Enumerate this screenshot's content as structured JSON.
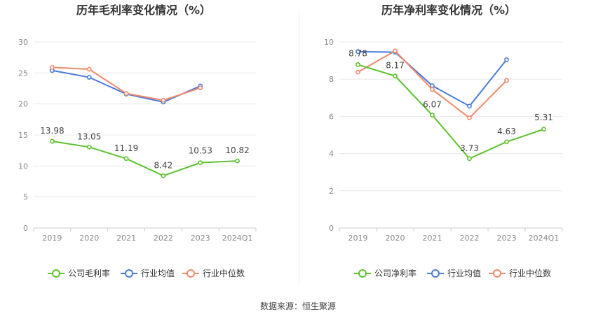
{
  "source": "数据来源：恒生聚源",
  "colors": {
    "company": "#5cc22c",
    "avg": "#4a7bd8",
    "median": "#f2896a"
  },
  "chart_data": [
    {
      "type": "line",
      "title": "历年毛利率变化情况（%）",
      "categories": [
        "2019",
        "2020",
        "2021",
        "2022",
        "2023",
        "2024Q1"
      ],
      "ylim": [
        0,
        30
      ],
      "yticks": [
        0,
        5,
        10,
        15,
        20,
        25,
        30
      ],
      "grid": true,
      "legend": "bottom",
      "series": [
        {
          "name": "公司毛利率",
          "key": "company",
          "values": [
            13.98,
            13.05,
            11.19,
            8.42,
            10.53,
            10.82
          ],
          "labels": [
            "13.98",
            "13.05",
            "11.19",
            "8.42",
            "10.53",
            "10.82"
          ]
        },
        {
          "name": "行业均值",
          "key": "avg",
          "values": [
            25.4,
            24.3,
            21.6,
            20.3,
            22.9,
            null
          ]
        },
        {
          "name": "行业中位数",
          "key": "median",
          "values": [
            25.9,
            25.6,
            21.7,
            20.6,
            22.6,
            null
          ]
        }
      ]
    },
    {
      "type": "line",
      "title": "历年净利率变化情况（%）",
      "categories": [
        "2019",
        "2020",
        "2021",
        "2022",
        "2023",
        "2024Q1"
      ],
      "ylim": [
        0,
        10
      ],
      "yticks": [
        0,
        2,
        4,
        6,
        8,
        10
      ],
      "grid": true,
      "legend": "bottom",
      "series": [
        {
          "name": "公司净利率",
          "key": "company",
          "values": [
            8.78,
            8.17,
            6.07,
            3.73,
            4.63,
            5.31
          ],
          "labels": [
            "8.78",
            "8.17",
            "6.07",
            "3.73",
            "4.63",
            "5.31"
          ]
        },
        {
          "name": "行业均值",
          "key": "avg",
          "values": [
            9.48,
            9.45,
            7.65,
            6.55,
            9.05,
            null
          ]
        },
        {
          "name": "行业中位数",
          "key": "median",
          "values": [
            8.38,
            9.52,
            7.45,
            5.92,
            7.93,
            null
          ]
        }
      ]
    }
  ]
}
